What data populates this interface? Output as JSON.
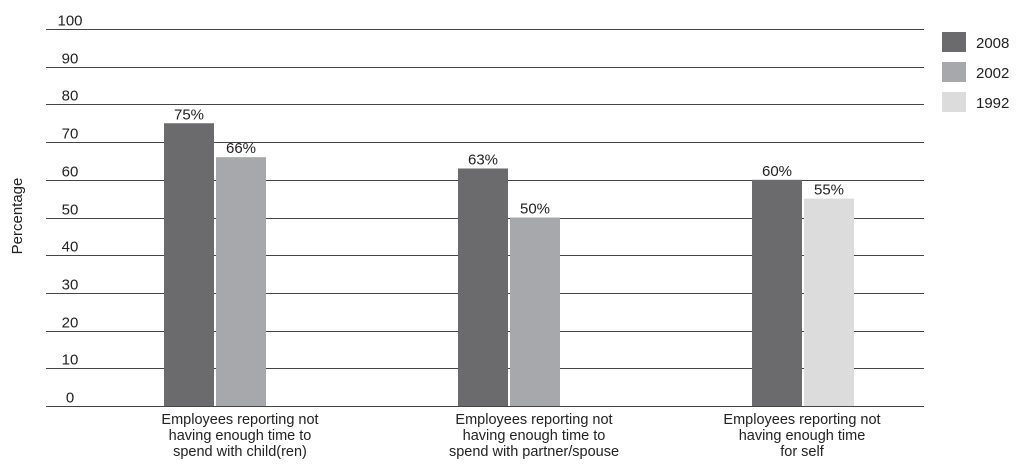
{
  "chart_data": {
    "type": "bar",
    "ylabel": "Percentage",
    "ylim": [
      0,
      100
    ],
    "yticks": [
      "0",
      "10",
      "20",
      "30",
      "40",
      "50",
      "60",
      "70",
      "80",
      "90",
      "100"
    ],
    "grid": true,
    "legend_placement": "top-right",
    "categories": [
      [
        "Employees reporting not",
        "having enough time to",
        "spend with child(ren)"
      ],
      [
        "Employees reporting not",
        "having enough time to",
        "spend with partner/spouse"
      ],
      [
        "Employees reporting not",
        "having enough time",
        "for self"
      ]
    ],
    "series": [
      {
        "name": "2008",
        "color": "#6b6b6e",
        "values": [
          75,
          63,
          60
        ],
        "labels": [
          "75%",
          "63%",
          "60%"
        ]
      },
      {
        "name": "2002",
        "color": "#a7a8ab",
        "values": [
          66,
          50,
          null
        ],
        "labels": [
          "66%",
          "50%",
          ""
        ]
      },
      {
        "name": "1992",
        "color": "#dcdcdd",
        "values": [
          null,
          null,
          55
        ],
        "labels": [
          "",
          "",
          "55%"
        ]
      }
    ]
  }
}
